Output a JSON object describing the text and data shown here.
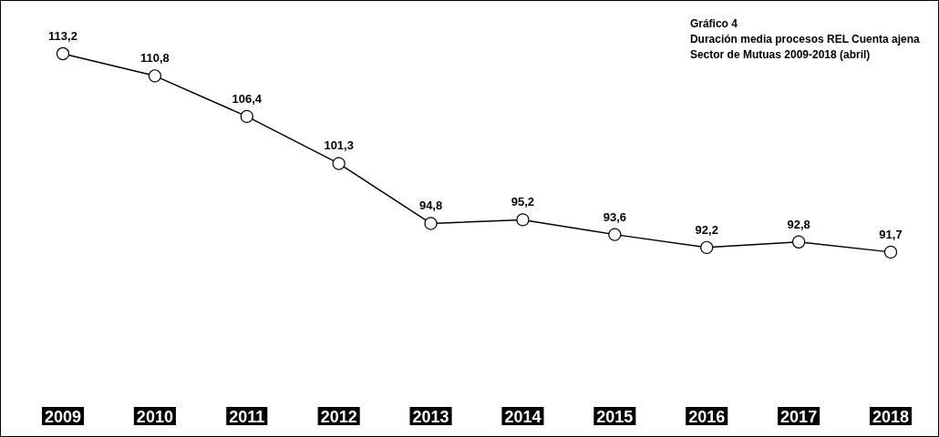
{
  "chart_data": {
    "type": "line",
    "title": "Gráfico 4",
    "subtitle": "Duración media procesos REL Cuenta ajena\nSector de Mutuas 2009-2018 (abril)",
    "categories": [
      "2009",
      "2010",
      "2011",
      "2012",
      "2013",
      "2014",
      "2015",
      "2016",
      "2017",
      "2018"
    ],
    "series": [
      {
        "color": "#000000",
        "values": [
          113.2,
          110.8,
          106.4,
          101.3,
          94.8,
          95.2,
          93.6,
          92.2,
          92.8,
          91.7
        ],
        "value_labels": [
          "113,2",
          "110,8",
          "106,4",
          "101,3",
          "94,8",
          "95,2",
          "93,6",
          "92,2",
          "92,8",
          "91,7"
        ]
      }
    ],
    "marker": "circle",
    "line_style": "solid",
    "grid": false
  }
}
